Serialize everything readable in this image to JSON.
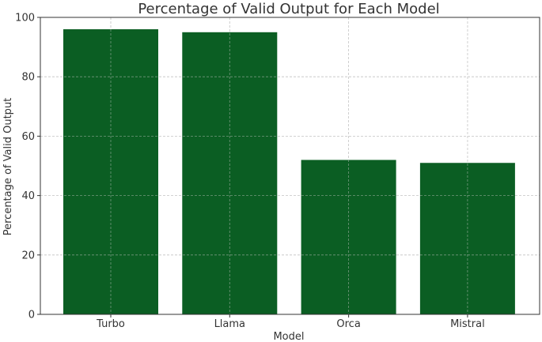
{
  "chart_data": {
    "type": "bar",
    "title": "Percentage of Valid Output for Each Model",
    "xlabel": "Model",
    "ylabel": "Percentage of Valid Output",
    "categories": [
      "Turbo",
      "Llama",
      "Orca",
      "Mistral"
    ],
    "values": [
      96,
      95,
      52,
      51
    ],
    "ylim": [
      0,
      100
    ],
    "yticks": [
      0,
      20,
      40,
      60,
      80,
      100
    ],
    "grid": true,
    "bar_color": "#0b5e23"
  }
}
